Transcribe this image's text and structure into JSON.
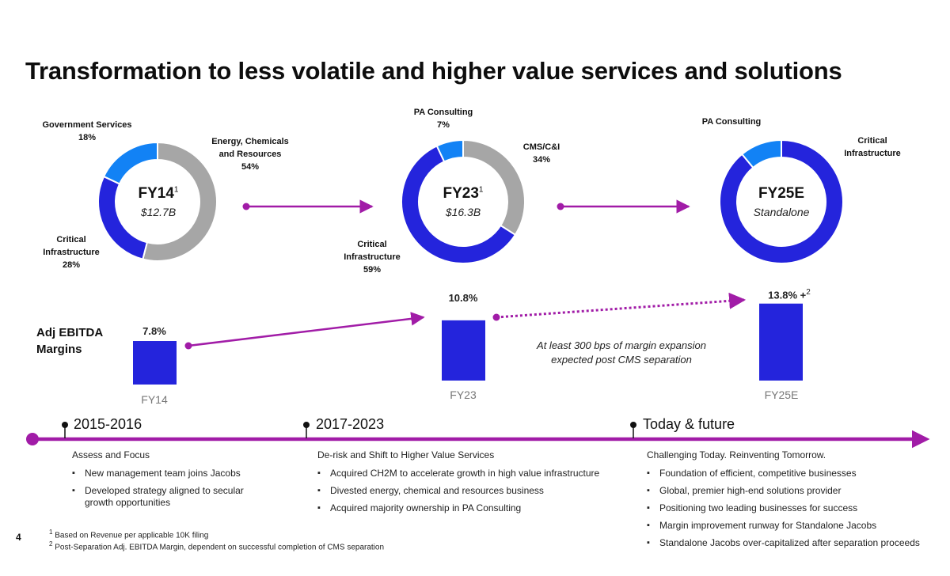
{
  "title": "Transformation to less volatile and higher value services and solutions",
  "colors": {
    "dark_blue": "#2424DC",
    "light_blue": "#1282F5",
    "gray": "#A6A6A6",
    "purple": "#A11CA7"
  },
  "chart_data": [
    {
      "type": "pie",
      "variant": "donut",
      "title": "FY14",
      "subtitle": "$12.7B",
      "footnote": "1",
      "slices": [
        {
          "label": "Energy, Chemicals and Resources",
          "label_lines": [
            "Energy, Chemicals",
            "and Resources"
          ],
          "value": 54,
          "value_label": "54%",
          "color": "#A6A6A6"
        },
        {
          "label": "Critical Infrastructure",
          "label_lines": [
            "Critical",
            "Infrastructure"
          ],
          "value": 28,
          "value_label": "28%",
          "color": "#2424DC"
        },
        {
          "label": "Government Services",
          "label_lines": [
            "Government Services"
          ],
          "value": 18,
          "value_label": "18%",
          "color": "#1282F5"
        }
      ]
    },
    {
      "type": "pie",
      "variant": "donut",
      "title": "FY23",
      "subtitle": "$16.3B",
      "footnote": "1",
      "slices": [
        {
          "label": "CMS/C&I",
          "label_lines": [
            "CMS/C&I"
          ],
          "value": 34,
          "value_label": "34%",
          "color": "#A6A6A6"
        },
        {
          "label": "Critical Infrastructure",
          "label_lines": [
            "Critical",
            "Infrastructure"
          ],
          "value": 59,
          "value_label": "59%",
          "color": "#2424DC"
        },
        {
          "label": "PA Consulting",
          "label_lines": [
            "PA Consulting"
          ],
          "value": 7,
          "value_label": "7%",
          "color": "#1282F5"
        }
      ]
    },
    {
      "type": "pie",
      "variant": "donut",
      "title": "FY25E",
      "subtitle": "Standalone",
      "slices": [
        {
          "label": "Critical Infrastructure",
          "label_lines": [
            "Critical",
            "Infrastructure"
          ],
          "value": 89,
          "color": "#2424DC"
        },
        {
          "label": "PA Consulting",
          "label_lines": [
            "PA Consulting"
          ],
          "value": 11,
          "color": "#1282F5"
        }
      ]
    },
    {
      "type": "bar",
      "title": "Adj EBITDA Margins",
      "title_lines": [
        "Adj EBITDA",
        "Margins"
      ],
      "categories": [
        "FY14",
        "FY23",
        "FY25E"
      ],
      "values": [
        7.8,
        10.8,
        13.8
      ],
      "value_labels": [
        "7.8%",
        "10.8%",
        "13.8% +"
      ],
      "value_footnotes": [
        "",
        "",
        "2"
      ],
      "ylim": [
        0,
        14
      ],
      "color": "#2424DC",
      "annotation": [
        "At least 300 bps of margin expansion",
        "expected post CMS separation"
      ]
    }
  ],
  "timeline": {
    "phases": [
      {
        "title": "2015-2016",
        "heading": "Assess and Focus",
        "bullets": [
          "New management team joins Jacobs",
          "Developed strategy aligned to secular growth opportunities"
        ]
      },
      {
        "title": "2017-2023",
        "heading": "De-risk and Shift to Higher Value Services",
        "bullets": [
          "Acquired CH2M to accelerate growth in high value infrastructure",
          "Divested energy, chemical and resources business",
          "Acquired majority ownership in PA Consulting"
        ]
      },
      {
        "title": "Today & future",
        "heading": "Challenging Today. Reinventing Tomorrow.",
        "bullets": [
          "Foundation of efficient, competitive businesses",
          "Global, premier high-end solutions provider",
          "Positioning two leading businesses for success",
          "Margin improvement runway for Standalone Jacobs",
          "Standalone Jacobs over-capitalized after separation proceeds"
        ]
      }
    ]
  },
  "footnotes": [
    {
      "mark": "1",
      "text": "Based on Revenue per applicable 10K filing"
    },
    {
      "mark": "2",
      "text": "Post-Separation Adj. EBITDA Margin, dependent on successful completion of CMS separation"
    }
  ],
  "page_number": "4"
}
